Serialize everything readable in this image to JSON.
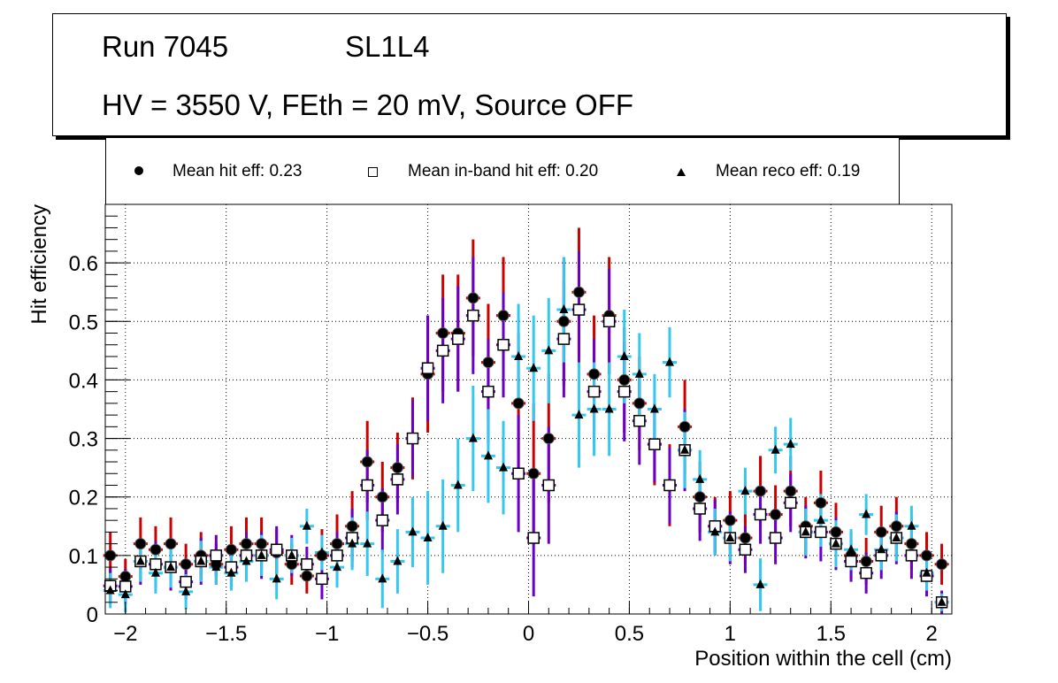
{
  "chart_data": {
    "type": "scatter",
    "title_lines": [
      "Run 7045",
      "SL1L4",
      "HV = 3550 V, FEth = 20 mV, Source OFF"
    ],
    "run_label": "Run 7045",
    "detector_label": "SL1L4",
    "conditions_label": "HV = 3550 V, FEth = 20 mV, Source OFF",
    "xlabel": "Position within the cell (cm)",
    "ylabel": "Hit efficiency",
    "xlim": [
      -2.1,
      2.1
    ],
    "ylim": [
      0,
      0.7
    ],
    "xticks": [
      -2,
      -1.5,
      -1,
      -0.5,
      0,
      0.5,
      1,
      1.5,
      2
    ],
    "xtick_labels": [
      "−2",
      "−1.5",
      "−1",
      "−0.5",
      "0",
      "0.5",
      "1",
      "1.5",
      "2"
    ],
    "yticks": [
      0,
      0.1,
      0.2,
      0.3,
      0.4,
      0.5,
      0.6
    ],
    "ytick_labels": [
      "0",
      "0.1",
      "0.2",
      "0.3",
      "0.4",
      "0.5",
      "0.6"
    ],
    "grid": true,
    "legend_position": "top",
    "legend": [
      {
        "label": "Mean hit  eff: 0.23",
        "marker": "filled-circle"
      },
      {
        "label": "Mean in-band hit eff: 0.20",
        "marker": "open-square"
      },
      {
        "label": "Mean reco eff: 0.19",
        "marker": "filled-triangle"
      }
    ],
    "colors": {
      "hit_err": "#cc0000",
      "inband_err": "#6a00c8",
      "reco_err": "#33c8f0",
      "marker": "#000000"
    },
    "x": [
      -2.075,
      -2.0,
      -1.925,
      -1.85,
      -1.775,
      -1.7,
      -1.625,
      -1.55,
      -1.475,
      -1.4,
      -1.325,
      -1.25,
      -1.175,
      -1.1,
      -1.025,
      -0.95,
      -0.875,
      -0.8,
      -0.725,
      -0.65,
      -0.575,
      -0.5,
      -0.425,
      -0.35,
      -0.275,
      -0.2,
      -0.125,
      -0.05,
      0.025,
      0.1,
      0.175,
      0.25,
      0.325,
      0.4,
      0.475,
      0.55,
      0.625,
      0.7,
      0.775,
      0.85,
      0.925,
      1.0,
      1.075,
      1.15,
      1.225,
      1.3,
      1.375,
      1.45,
      1.525,
      1.6,
      1.675,
      1.75,
      1.825,
      1.9,
      1.975,
      2.05
    ],
    "series": [
      {
        "name": "Mean hit eff",
        "values": [
          0.1,
          0.064,
          0.12,
          0.11,
          0.12,
          0.085,
          0.1,
          0.085,
          0.11,
          0.12,
          0.12,
          0.105,
          0.085,
          0.065,
          0.1,
          0.12,
          0.15,
          0.26,
          0.2,
          0.25,
          0.3,
          0.41,
          0.48,
          0.48,
          0.54,
          0.43,
          0.51,
          0.36,
          0.24,
          0.3,
          0.5,
          0.55,
          0.41,
          0.51,
          0.4,
          0.36,
          0.29,
          0.22,
          0.32,
          0.2,
          0.15,
          0.16,
          0.13,
          0.21,
          0.17,
          0.21,
          0.15,
          0.19,
          0.14,
          0.1,
          0.09,
          0.14,
          0.15,
          0.12,
          0.1,
          0.085
        ],
        "err": [
          0.04,
          0.03,
          0.045,
          0.04,
          0.045,
          0.035,
          0.04,
          0.035,
          0.04,
          0.045,
          0.045,
          0.04,
          0.035,
          0.03,
          0.045,
          0.05,
          0.06,
          0.07,
          0.06,
          0.06,
          0.07,
          0.1,
          0.1,
          0.1,
          0.1,
          0.1,
          0.1,
          0.12,
          0.12,
          0.11,
          0.11,
          0.11,
          0.1,
          0.1,
          0.09,
          0.08,
          0.07,
          0.07,
          0.08,
          0.06,
          0.05,
          0.05,
          0.045,
          0.06,
          0.05,
          0.06,
          0.05,
          0.055,
          0.05,
          0.04,
          0.04,
          0.045,
          0.05,
          0.045,
          0.04,
          0.035
        ]
      },
      {
        "name": "Mean in-band hit eff",
        "values": [
          0.048,
          0.047,
          0.09,
          0.085,
          0.08,
          0.055,
          0.09,
          0.1,
          0.08,
          0.1,
          0.1,
          0.11,
          0.1,
          0.085,
          0.06,
          0.1,
          0.13,
          0.22,
          0.16,
          0.23,
          0.3,
          0.42,
          0.45,
          0.47,
          0.51,
          0.38,
          0.46,
          0.24,
          0.13,
          0.22,
          0.47,
          0.52,
          0.38,
          0.5,
          0.38,
          0.33,
          0.29,
          0.22,
          0.28,
          0.18,
          0.15,
          0.13,
          0.11,
          0.17,
          0.13,
          0.19,
          0.14,
          0.14,
          0.12,
          0.09,
          0.07,
          0.1,
          0.13,
          0.1,
          0.065,
          0.02
        ],
        "err": [
          0.03,
          0.03,
          0.04,
          0.04,
          0.04,
          0.03,
          0.04,
          0.035,
          0.035,
          0.04,
          0.04,
          0.04,
          0.035,
          0.03,
          0.035,
          0.04,
          0.05,
          0.06,
          0.055,
          0.06,
          0.065,
          0.09,
          0.09,
          0.09,
          0.1,
          0.09,
          0.09,
          0.1,
          0.1,
          0.1,
          0.1,
          0.1,
          0.09,
          0.09,
          0.085,
          0.075,
          0.065,
          0.065,
          0.07,
          0.055,
          0.045,
          0.045,
          0.04,
          0.05,
          0.045,
          0.05,
          0.045,
          0.05,
          0.045,
          0.035,
          0.035,
          0.04,
          0.045,
          0.04,
          0.035,
          0.02
        ]
      },
      {
        "name": "Mean reco eff",
        "values": [
          0.04,
          0.033,
          0.09,
          0.07,
          0.08,
          0.038,
          0.09,
          0.08,
          0.07,
          0.09,
          0.1,
          0.06,
          0.1,
          0.15,
          0.105,
          0.08,
          0.12,
          0.12,
          0.06,
          0.09,
          0.14,
          0.13,
          0.15,
          0.22,
          0.3,
          0.27,
          0.25,
          0.44,
          0.42,
          0.45,
          0.52,
          0.34,
          0.35,
          0.35,
          0.44,
          0.41,
          0.35,
          0.43,
          0.28,
          0.23,
          0.14,
          0.13,
          0.21,
          0.05,
          0.28,
          0.29,
          0.14,
          0.16,
          0.12,
          0.11,
          0.17,
          0.11,
          0.13,
          0.15,
          0.07,
          0.02
        ],
        "err": [
          0.03,
          0.03,
          0.035,
          0.035,
          0.035,
          0.03,
          0.035,
          0.03,
          0.03,
          0.035,
          0.035,
          0.035,
          0.03,
          0.03,
          0.03,
          0.035,
          0.045,
          0.055,
          0.05,
          0.055,
          0.06,
          0.08,
          0.08,
          0.08,
          0.09,
          0.08,
          0.08,
          0.09,
          0.09,
          0.09,
          0.09,
          0.09,
          0.08,
          0.08,
          0.08,
          0.07,
          0.06,
          0.06,
          0.065,
          0.05,
          0.04,
          0.04,
          0.04,
          0.045,
          0.04,
          0.045,
          0.04,
          0.045,
          0.04,
          0.035,
          0.035,
          0.035,
          0.04,
          0.035,
          0.03,
          0.015
        ]
      }
    ]
  }
}
